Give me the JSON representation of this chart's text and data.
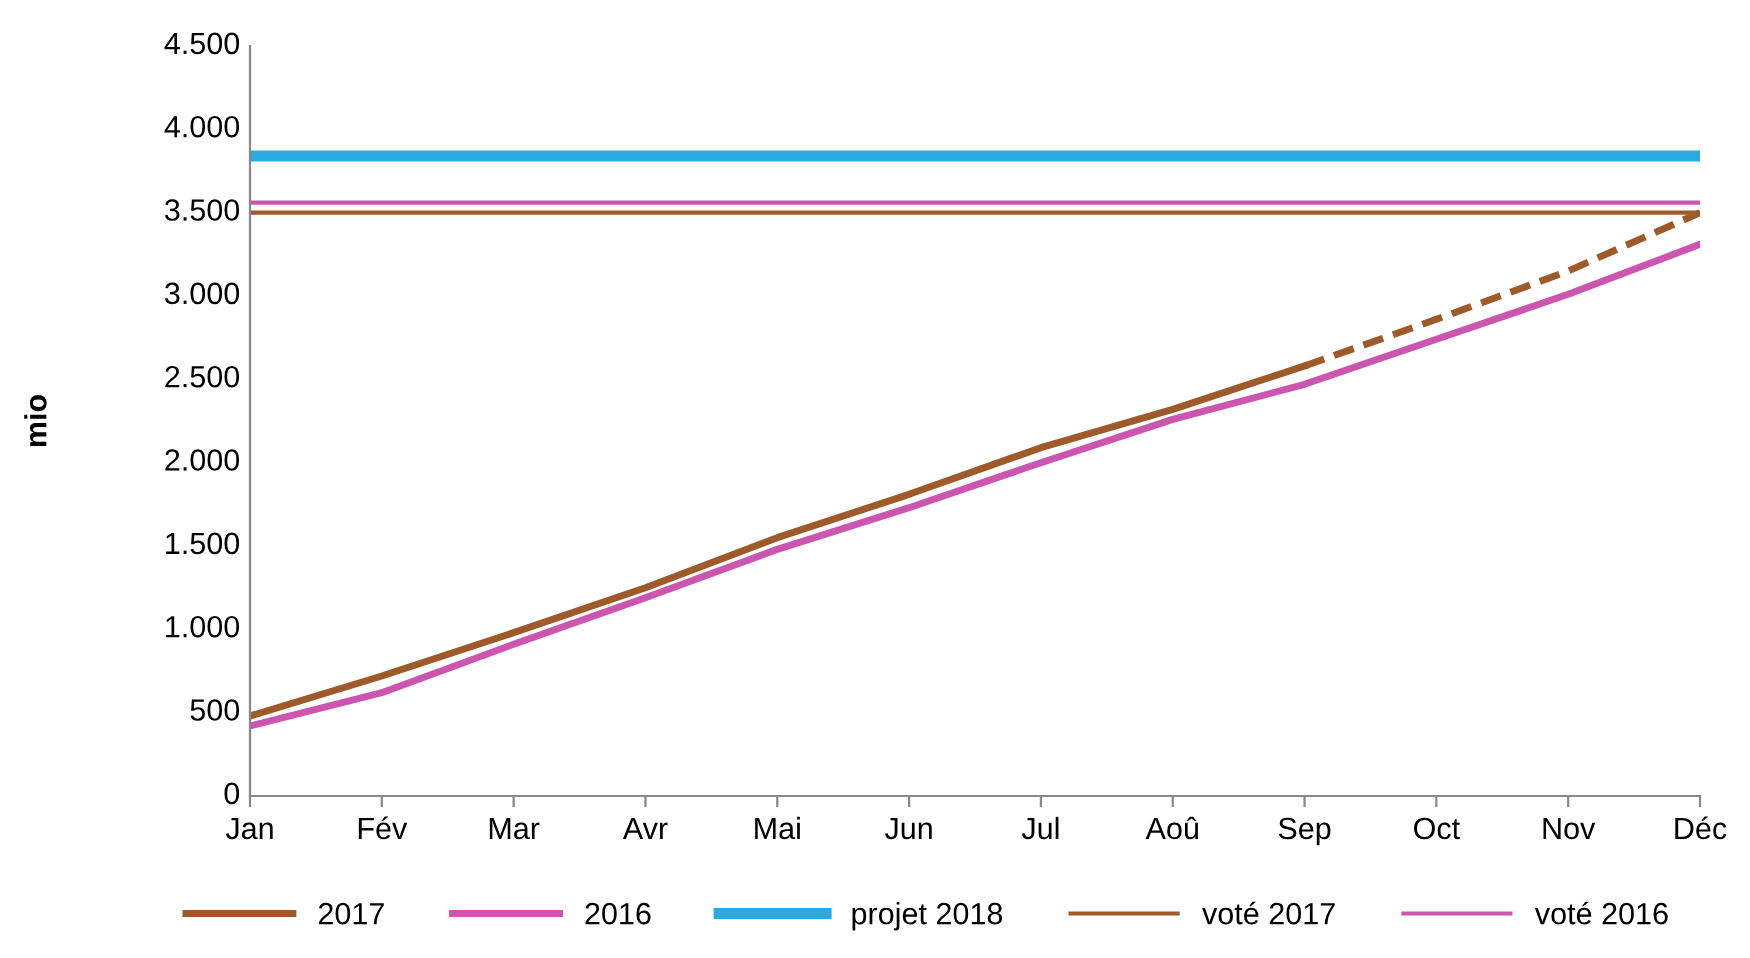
{
  "chart_data": {
    "type": "line",
    "ylabel": "mio",
    "categories": [
      "Jan",
      "Fév",
      "Mar",
      "Avr",
      "Mai",
      "Jun",
      "Jul",
      "Aoû",
      "Sep",
      "Oct",
      "Nov",
      "Déc"
    ],
    "series": [
      {
        "name": "2017",
        "color": "#9e5a2a",
        "values": [
          480,
          720,
          980,
          1250,
          1550,
          1810,
          2090,
          2320,
          2580,
          null,
          null,
          null
        ]
      },
      {
        "color": "#9e5a2a",
        "line_style": "dashed",
        "values": [
          null,
          null,
          null,
          null,
          null,
          null,
          null,
          null,
          2580,
          2860,
          3150,
          3500
        ]
      },
      {
        "name": "2016",
        "color": "#cc55b0",
        "values": [
          420,
          620,
          910,
          1190,
          1480,
          1730,
          2000,
          2260,
          2470,
          2740,
          3010,
          3310
        ]
      },
      {
        "name": "projet 2018",
        "color": "#2aaae0",
        "values": [
          3840,
          3840,
          3840,
          3840,
          3840,
          3840,
          3840,
          3840,
          3840,
          3840,
          3840,
          3840
        ]
      },
      {
        "name": "voté 2017",
        "color": "#9e5a2a",
        "values": [
          3500,
          3500,
          3500,
          3500,
          3500,
          3500,
          3500,
          3500,
          3500,
          3500,
          3500,
          3500
        ]
      },
      {
        "name": "voté 2016",
        "color": "#cc55b0",
        "values": [
          3560,
          3560,
          3560,
          3560,
          3560,
          3560,
          3560,
          3560,
          3560,
          3560,
          3560,
          3560
        ]
      }
    ],
    "ylim": [
      0,
      4500
    ],
    "yticks": [
      0,
      500,
      {
        "value": 1000,
        "label": "1.000"
      },
      {
        "value": 1500,
        "label": "1.500"
      },
      {
        "value": 2000,
        "label": "2.000"
      },
      {
        "value": 2500,
        "label": "2.500"
      },
      {
        "value": 3000,
        "label": "3.000"
      },
      {
        "value": 3500,
        "label": "3.500"
      },
      {
        "value": 4000,
        "label": "4.000"
      },
      {
        "value": 4500,
        "label": "4.500"
      }
    ],
    "grid": false,
    "legend": "bottom",
    "marker": "none",
    "line_style": "solid"
  }
}
